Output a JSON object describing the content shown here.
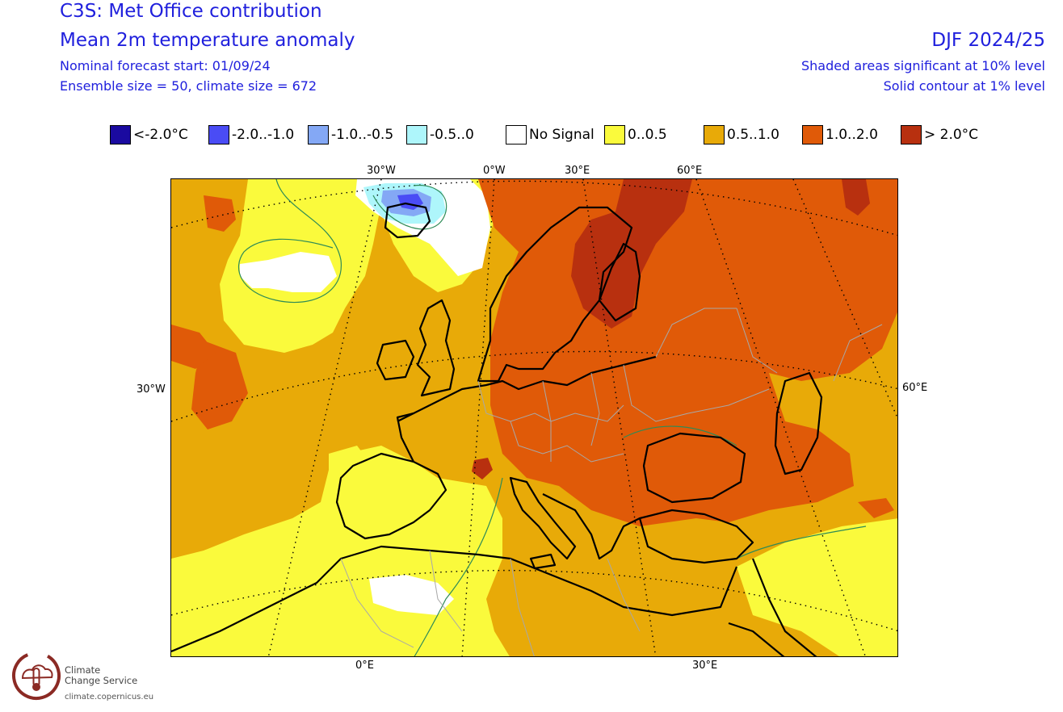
{
  "header": {
    "title": "C3S: Met Office contribution",
    "subtitle": "Mean 2m temperature anomaly",
    "forecast_start": "Nominal forecast start: 01/09/24",
    "ensemble": "Ensemble size = 50, climate size = 672",
    "season": "DJF 2024/25",
    "significance_shaded": "Shaded areas significant at 10% level",
    "significance_contour": "Solid contour at 1% level"
  },
  "legend": [
    {
      "label": "<-2.0°C",
      "color": "#1a0aa0"
    },
    {
      "label": "-2.0..-1.0",
      "color": "#4a4cf5"
    },
    {
      "label": "-1.0..-0.5",
      "color": "#84a8f5"
    },
    {
      "label": "-0.5..0",
      "color": "#aef6fb"
    },
    {
      "label": "No Signal",
      "color": "#ffffff"
    },
    {
      "label": "0..0.5",
      "color": "#fafa3c"
    },
    {
      "label": "0.5..1.0",
      "color": "#e8aa08"
    },
    {
      "label": "1.0..2.0",
      "color": "#e05a08"
    },
    {
      "label": "> 2.0°C",
      "color": "#b8300f"
    }
  ],
  "map": {
    "top_lon_labels": [
      "30°W",
      "0°W",
      "30°E",
      "60°E"
    ],
    "bottom_lon_labels": [
      "0°E",
      "30°E"
    ],
    "left_lat_label": "30°W",
    "right_lat_label": "60°E"
  },
  "branding": {
    "logo_line1": "Climate",
    "logo_line2": "Change Service",
    "url": "climate.copernicus.eu",
    "logo_color": "#8b2a24"
  }
}
